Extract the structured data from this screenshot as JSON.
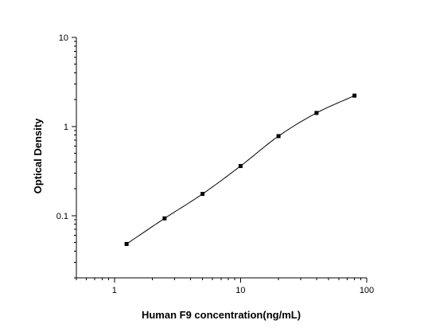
{
  "chart_data": {
    "type": "scatter",
    "title": "",
    "xlabel": "Human F9 concentration(ng/mL)",
    "ylabel": "Optical Density",
    "x_scale": "log",
    "y_scale": "log",
    "xlim": [
      0.5,
      100
    ],
    "ylim": [
      0.02,
      10
    ],
    "x_tick_labels": [
      "1",
      "10",
      "100"
    ],
    "y_tick_labels": [
      "0.1",
      "1",
      "10"
    ],
    "grid": false,
    "series": [
      {
        "x": [
          1.25,
          2.5,
          5,
          10,
          20,
          40,
          80
        ],
        "y": [
          0.048,
          0.093,
          0.175,
          0.36,
          0.78,
          1.42,
          2.22
        ],
        "marker": "square",
        "fitted_curve": true,
        "color": "#000000"
      }
    ]
  }
}
